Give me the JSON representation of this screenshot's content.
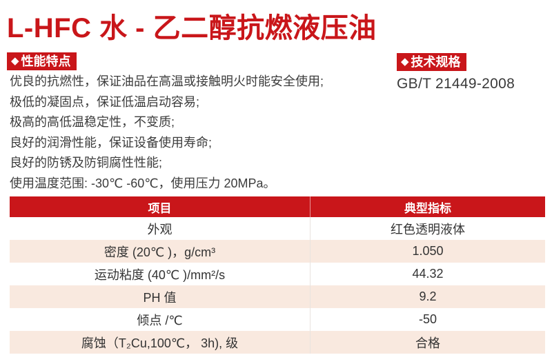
{
  "page": {
    "title": "L-HFC 水 - 乙二醇抗燃液压油"
  },
  "sections": {
    "performance": {
      "icon": "◆",
      "label": "性能特点"
    },
    "specs": {
      "icon": "◆",
      "label": "技术规格",
      "standard": "GB/T 21449-2008"
    }
  },
  "features": [
    "优良的抗燃性，保证油品在高温或接触明火时能安全使用;",
    "极低的凝固点，保证低温启动容易;",
    "极高的高低温稳定性，不变质;",
    "良好的润滑性能，保证设备使用寿命;",
    "良好的防锈及防铜腐性性能;",
    "使用温度范围: -30℃ -60℃，使用压力 20MPa。"
  ],
  "table": {
    "headers": {
      "item": "项目",
      "value": "典型指标"
    },
    "rows": [
      {
        "item": "外观",
        "value": "红色透明液体"
      },
      {
        "item": "密度 (20℃ )，g/cm³",
        "value": "1.050"
      },
      {
        "item": "运动粘度 (40℃ )/mm²/s",
        "value": "44.32"
      },
      {
        "item": "PH 值",
        "value": "9.2"
      },
      {
        "item": "倾点 /℃",
        "value": "-50"
      },
      {
        "item": "腐蚀（T₂Cu,100℃， 3h), 级",
        "value": "合格"
      }
    ]
  },
  "colors": {
    "accent_red": "#c9161a",
    "row_alt_bg": "#f9e9df",
    "body_text": "#3c3c3c",
    "header_text": "#ffffff"
  }
}
